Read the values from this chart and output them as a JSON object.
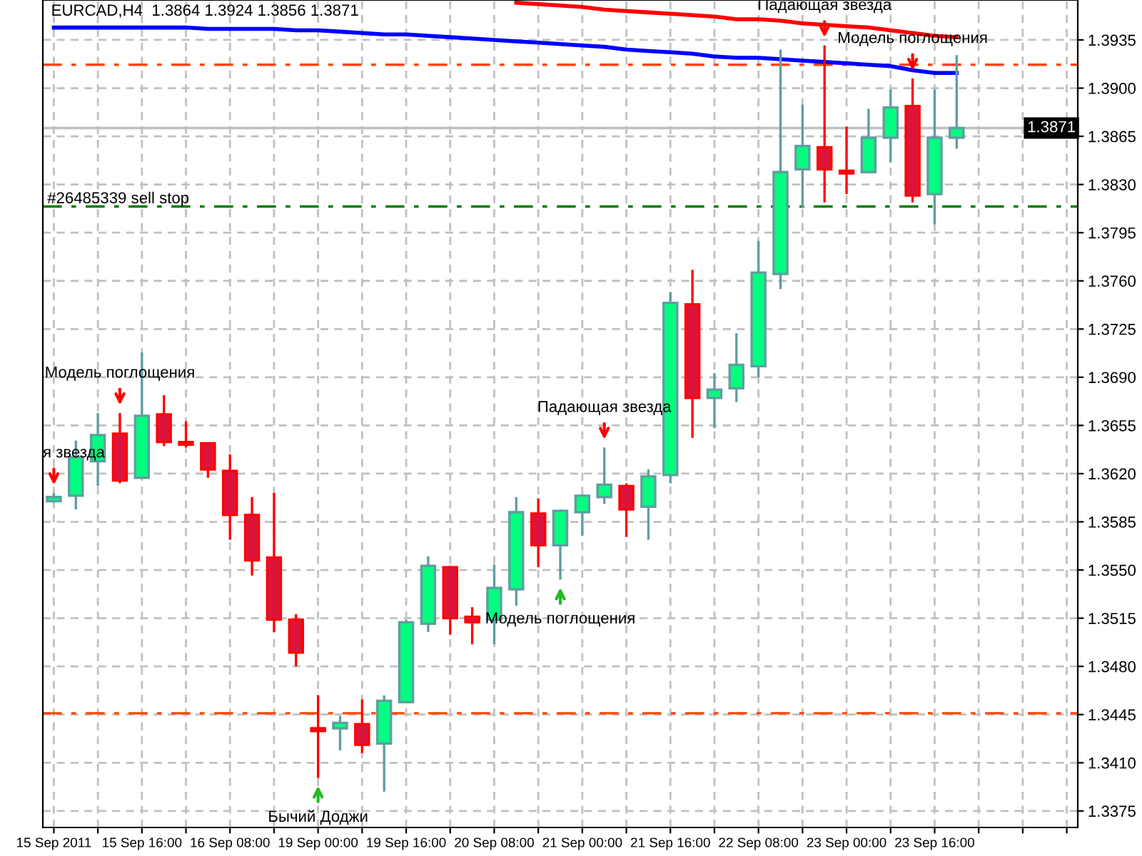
{
  "chart_data": {
    "type": "candlestick",
    "title": "EURCAD,H4  1.3864 1.3924 1.3856 1.3871",
    "categories": [
      "15 Sep 2011",
      null,
      null,
      null,
      "15 Sep 16:00",
      null,
      null,
      null,
      "16 Sep 08:00",
      null,
      null,
      null,
      "19 Sep 00:00",
      null,
      null,
      null,
      "19 Sep 16:00",
      null,
      null,
      null,
      "20 Sep 08:00",
      null,
      null,
      null,
      "21 Sep 00:00",
      null,
      null,
      null,
      "21 Sep 16:00",
      null,
      null,
      null,
      "22 Sep 08:00",
      null,
      null,
      null,
      "23 Sep 00:00",
      null,
      null,
      null,
      "23 Sep 16:00",
      null
    ],
    "ohlc": [
      [
        1.36,
        1.3606,
        1.3599,
        1.3603
      ],
      [
        1.3604,
        1.3644,
        1.3594,
        1.3632
      ],
      [
        1.3629,
        1.3664,
        1.3611,
        1.3648
      ],
      [
        1.3649,
        1.3664,
        1.3613,
        1.3615
      ],
      [
        1.3617,
        1.3708,
        1.3617,
        1.3662
      ],
      [
        1.3663,
        1.3677,
        1.364,
        1.3643
      ],
      [
        1.3643,
        1.3658,
        1.3639,
        1.3641
      ],
      [
        1.3642,
        1.3642,
        1.3617,
        1.3623
      ],
      [
        1.3622,
        1.3634,
        1.3572,
        1.359
      ],
      [
        1.359,
        1.3603,
        1.3546,
        1.3557
      ],
      [
        1.3559,
        1.3606,
        1.3505,
        1.3514
      ],
      [
        1.3514,
        1.3518,
        1.348,
        1.349
      ],
      [
        1.3435,
        1.3459,
        1.3399,
        1.3433
      ],
      [
        1.3435,
        1.3444,
        1.3419,
        1.3439
      ],
      [
        1.3438,
        1.3456,
        1.3417,
        1.3423
      ],
      [
        1.3424,
        1.3459,
        1.3389,
        1.3455
      ],
      [
        1.3454,
        1.3514,
        1.3454,
        1.3512
      ],
      [
        1.3511,
        1.356,
        1.3505,
        1.3553
      ],
      [
        1.3552,
        1.3553,
        1.3503,
        1.3515
      ],
      [
        1.3516,
        1.3523,
        1.3496,
        1.3512
      ],
      [
        1.3514,
        1.3554,
        1.3496,
        1.3537
      ],
      [
        1.3536,
        1.3603,
        1.3524,
        1.3592
      ],
      [
        1.3591,
        1.3602,
        1.3552,
        1.3568
      ],
      [
        1.3568,
        1.3594,
        1.3543,
        1.3593
      ],
      [
        1.3592,
        1.3605,
        1.3575,
        1.3604
      ],
      [
        1.3603,
        1.3639,
        1.3598,
        1.3612
      ],
      [
        1.3611,
        1.3613,
        1.3574,
        1.3594
      ],
      [
        1.3596,
        1.3623,
        1.3572,
        1.3618
      ],
      [
        1.3619,
        1.3752,
        1.3613,
        1.3744
      ],
      [
        1.3743,
        1.3768,
        1.3646,
        1.3675
      ],
      [
        1.3675,
        1.3693,
        1.3653,
        1.3681
      ],
      [
        1.3682,
        1.3722,
        1.3672,
        1.3699
      ],
      [
        1.3698,
        1.3789,
        1.369,
        1.3766
      ],
      [
        1.3765,
        1.3928,
        1.3754,
        1.3839
      ],
      [
        1.3841,
        1.3888,
        1.3813,
        1.3858
      ],
      [
        1.3857,
        1.3931,
        1.3817,
        1.3841
      ],
      [
        1.384,
        1.3872,
        1.3823,
        1.3838
      ],
      [
        1.3839,
        1.3885,
        1.3838,
        1.3864
      ],
      [
        1.3864,
        1.3899,
        1.3846,
        1.3886
      ],
      [
        1.3887,
        1.3907,
        1.3817,
        1.3822
      ],
      [
        1.3823,
        1.3899,
        1.3801,
        1.3864
      ],
      [
        1.3864,
        1.3924,
        1.3856,
        1.3871
      ]
    ],
    "colors": [
      "#00ff80",
      "#00ff80",
      "#00ff80",
      "#dc143c",
      "#00ff80",
      "#dc143c",
      "#dc143c",
      "#dc143c",
      "#dc143c",
      "#dc143c",
      "#dc143c",
      "#dc143c",
      "#dc143c",
      "#00ff80",
      "#dc143c",
      "#00ff80",
      "#00ff80",
      "#00ff80",
      "#dc143c",
      "#dc143c",
      "#00ff80",
      "#00ff80",
      "#dc143c",
      "#00ff80",
      "#00ff80",
      "#00ff80",
      "#dc143c",
      "#00ff80",
      "#00ff80",
      "#dc143c",
      "#00ff80",
      "#00ff80",
      "#00ff80",
      "#00ff80",
      "#00ff80",
      "#dc143c",
      "#dc143c",
      "#00ff80",
      "#00ff80",
      "#dc143c",
      "#00ff80",
      "#00ff80"
    ],
    "series": [
      {
        "type": "line",
        "color": "#0000ff",
        "values": [
          1.3944,
          1.3944,
          1.3944,
          1.3944,
          1.3944,
          1.3944,
          1.3944,
          1.3943,
          1.3943,
          1.3943,
          1.3943,
          1.3942,
          1.3942,
          1.3941,
          1.394,
          1.3939,
          1.3939,
          1.3938,
          1.3937,
          1.3936,
          1.3935,
          1.3934,
          1.3933,
          1.3932,
          1.3931,
          1.393,
          1.3928,
          1.3927,
          1.3926,
          1.3925,
          1.3923,
          1.3922,
          1.3922,
          1.3921,
          1.392,
          1.3919,
          1.3918,
          1.3917,
          1.3916,
          1.3913,
          1.3911,
          1.3911
        ]
      },
      {
        "type": "line",
        "color": "#ff0000",
        "values": [
          null,
          null,
          null,
          null,
          null,
          null,
          null,
          null,
          null,
          null,
          null,
          null,
          null,
          null,
          null,
          null,
          null,
          null,
          null,
          null,
          null,
          1.3962,
          1.3961,
          1.396,
          1.3959,
          1.3957,
          1.3956,
          1.3955,
          1.3954,
          1.3953,
          1.3952,
          1.395,
          1.395,
          1.3949,
          1.3947,
          1.3946,
          1.3945,
          1.3944,
          1.3942,
          1.394,
          1.3938,
          1.3937
        ]
      }
    ],
    "ylim": [
      1.3363,
      1.3964
    ],
    "yticks": [
      {
        "value": 1.3375,
        "label": "1.3375"
      },
      {
        "value": 1.341,
        "label": "1.3410"
      },
      {
        "value": 1.3445,
        "label": "1.3445"
      },
      {
        "value": 1.348,
        "label": "1.3480"
      },
      {
        "value": 1.3515,
        "label": "1.3515"
      },
      {
        "value": 1.355,
        "label": "1.3550"
      },
      {
        "value": 1.3585,
        "label": "1.3585"
      },
      {
        "value": 1.362,
        "label": "1.3620"
      },
      {
        "value": 1.3655,
        "label": "1.3655"
      },
      {
        "value": 1.369,
        "label": "1.3690"
      },
      {
        "value": 1.3725,
        "label": "1.3725"
      },
      {
        "value": 1.376,
        "label": "1.3760"
      },
      {
        "value": 1.3795,
        "label": "1.3795"
      },
      {
        "value": 1.383,
        "label": "1.3830"
      },
      {
        "value": 1.3865,
        "label": "1.3865"
      },
      {
        "value": 1.39,
        "label": "1.3900"
      },
      {
        "value": 1.3935,
        "label": "1.3935"
      }
    ],
    "grid": true,
    "ref_lines": [
      {
        "axis": "y",
        "value": 1.3917,
        "color": "#ff4500",
        "line_style": "dashed"
      },
      {
        "axis": "y",
        "value": 1.3446,
        "color": "#ff4500",
        "line_style": "dashed"
      },
      {
        "axis": "y",
        "value": 1.3814,
        "color": "#008000",
        "line_style": "dashed",
        "label": "#26485339 sell stop"
      },
      {
        "axis": "y",
        "value": 1.3871,
        "color": "#c0c0c0",
        "line_style": "solid",
        "label": "1.3871"
      }
    ],
    "annotations": [
      {
        "text": "я звезда",
        "x": "15 Sep 2011",
        "y": 1.3606
      },
      {
        "text": "Модель поглощения",
        "y": 1.3664
      },
      {
        "text": "Бычий Доджи",
        "x": "19 Sep 00:00",
        "y": 1.3399
      },
      {
        "text": "Модель поглощения",
        "y": 1.3543
      },
      {
        "text": "Падающая звезда",
        "y": 1.3639
      },
      {
        "text": "Падающая звезда",
        "y": 1.3931
      },
      {
        "text": "Модель поглощения",
        "y": 1.3907
      }
    ]
  }
}
